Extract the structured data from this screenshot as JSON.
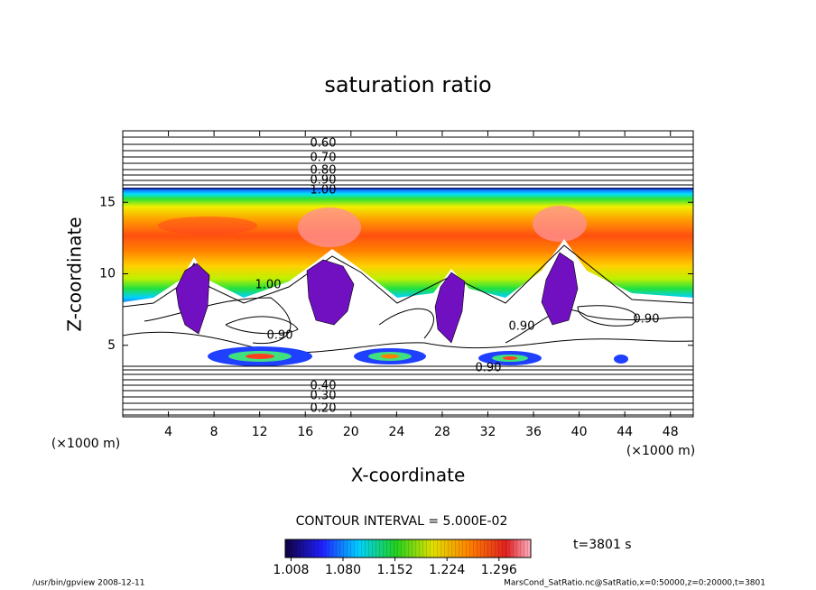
{
  "chart_data": {
    "type": "contour",
    "title": "saturation ratio",
    "x_label": "X-coordinate",
    "y_label": "Z-coordinate",
    "x_unit_label": "(×1000 m)",
    "y_unit_label": "(×1000 m)",
    "xlim": [
      0,
      50
    ],
    "ylim": [
      0,
      20
    ],
    "xticks": [
      4,
      8,
      12,
      16,
      20,
      24,
      28,
      32,
      36,
      40,
      44,
      48
    ],
    "yticks": [
      5,
      10,
      15
    ],
    "contour_labels": [
      "0.60",
      "0.70",
      "0.80",
      "0.90",
      "1.00",
      "1.00",
      "0.90",
      "0.90",
      "0.90",
      "0.90",
      "0.40",
      "0.30",
      "0.20"
    ],
    "contour_interval_label": "CONTOUR INTERVAL = 5.000E-02",
    "colorbar": {
      "lim": [
        1.0,
        1.34
      ],
      "ticks": [
        1.008,
        {
          "value": 1.08,
          "label": "1.080"
        },
        1.152,
        1.224,
        1.296
      ]
    },
    "time_label": "t=3801 s",
    "footer_left": "/usr/bin/gpview   2008-12-11",
    "footer_right": "MarsCond_SatRatio.nc@SatRatio,x=0:50000,z=0:20000,t=3801"
  }
}
